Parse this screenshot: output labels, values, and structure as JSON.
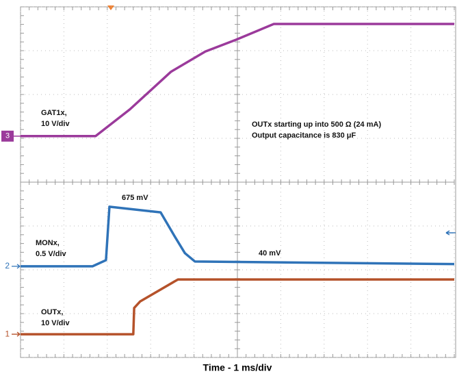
{
  "chart_data": {
    "type": "line",
    "xlabel": "Time - 1 ms/div",
    "xlim": [
      0,
      10
    ],
    "ylim": [
      0,
      8
    ],
    "xticks": [
      0,
      1,
      2,
      3,
      4,
      5,
      6,
      7,
      8,
      9,
      10
    ],
    "yticks": [
      0,
      1,
      2,
      3,
      4,
      5,
      6,
      7,
      8
    ],
    "grid": true,
    "annotations": [
      "GAT1x,",
      "10 V/div",
      "OUTx starting up into 500 Ω (24 mA)",
      "Output capacitance is 830 μF",
      "675 mV",
      "MONx,",
      "0.5 V/div",
      "40 mV",
      "OUTx,",
      "10 V/div"
    ],
    "series": [
      {
        "name": "3",
        "color": "#9b3a9b",
        "x": [
          0,
          1.73,
          2.52,
          3.47,
          4.26,
          4.97,
          5.84,
          10
        ],
        "values": [
          5.05,
          5.05,
          5.66,
          6.52,
          6.98,
          7.25,
          7.61,
          7.61
        ]
      },
      {
        "name": "2",
        "color": "#2f73b8",
        "x": [
          0,
          1.66,
          1.97,
          2.05,
          3.23,
          3.55,
          3.79,
          4.02,
          10
        ],
        "values": [
          2.08,
          2.08,
          2.22,
          3.44,
          3.31,
          2.77,
          2.38,
          2.19,
          2.13
        ]
      },
      {
        "name": "1",
        "color": "#b5522a",
        "x": [
          0,
          2.6,
          2.62,
          2.76,
          3.63,
          10
        ],
        "values": [
          0.53,
          0.53,
          1.13,
          1.28,
          1.78,
          1.78
        ]
      }
    ]
  }
}
